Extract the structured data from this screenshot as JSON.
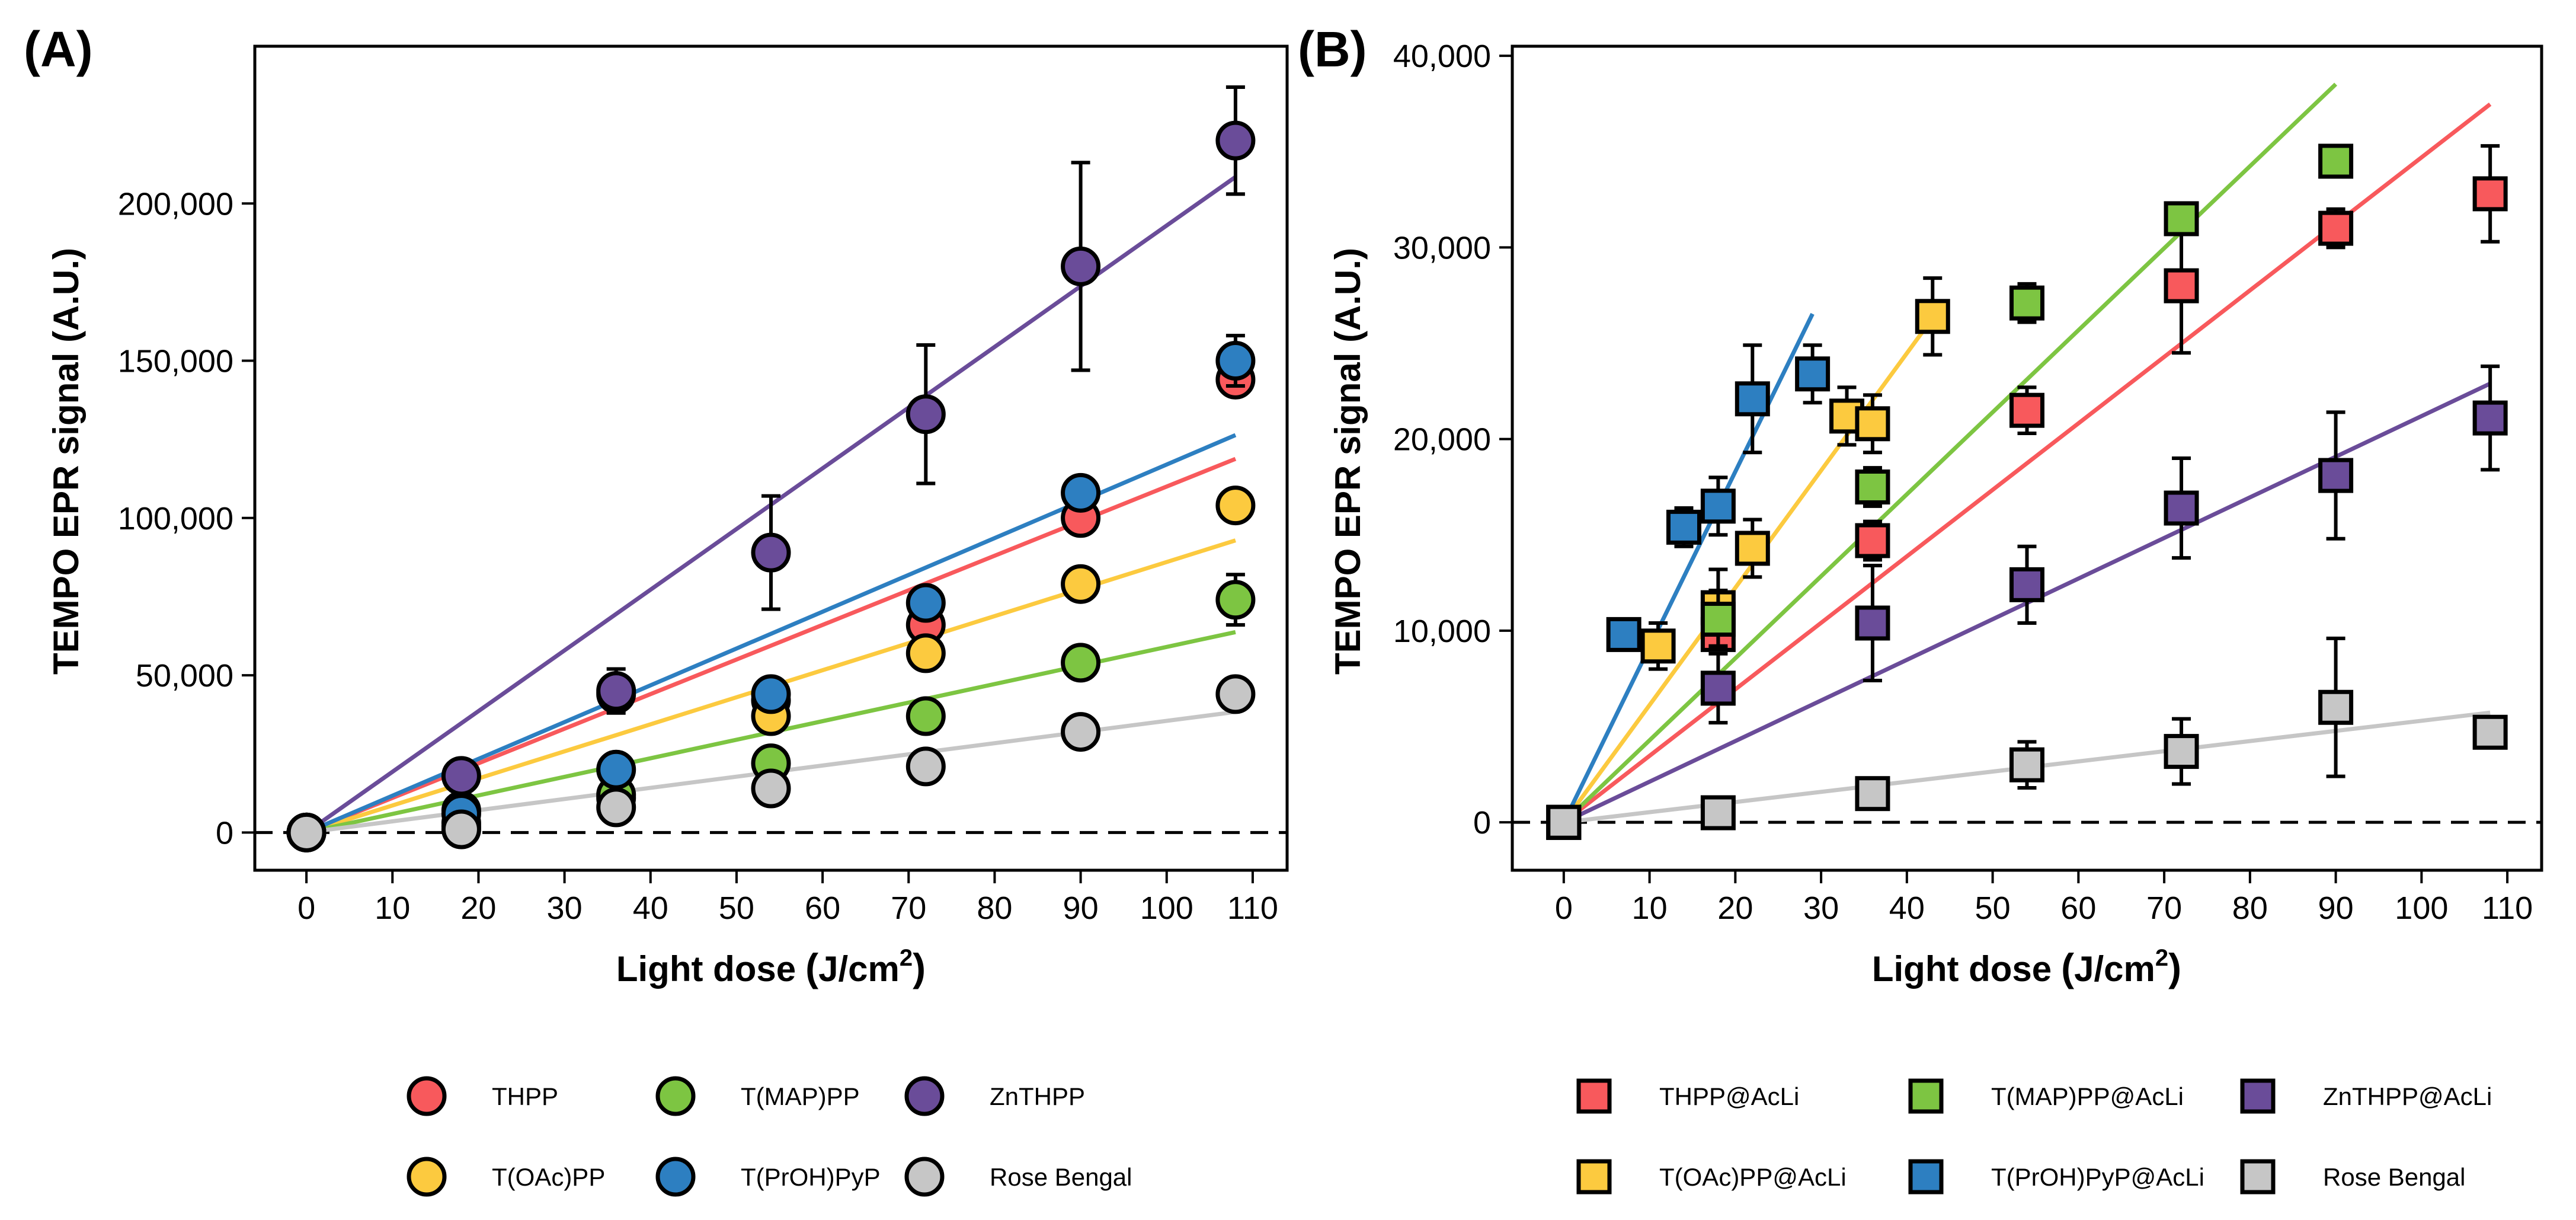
{
  "chart_data": [
    {
      "type": "scatter",
      "panel_label": "(A)",
      "xlabel_main": "Light dose",
      "xlabel_unit": "J/cm",
      "xlabel_sup": "2",
      "ylabel": "TEMPO EPR signal (A.U.)",
      "xlim": [
        -6,
        114
      ],
      "ylim": [
        -12000,
        250000
      ],
      "xticks": [
        0,
        10,
        20,
        30,
        40,
        50,
        60,
        70,
        80,
        90,
        100,
        110
      ],
      "yticks": [
        0,
        50000,
        100000,
        150000,
        200000
      ],
      "ytick_labels": [
        "0",
        "50,000",
        "100,000",
        "150,000",
        "200,000"
      ],
      "marker": "circle",
      "series": [
        {
          "name": "THPP",
          "color": "#F8595C",
          "x": [
            0,
            18,
            36,
            54,
            72,
            90,
            108
          ],
          "y": [
            0,
            3000,
            44000,
            42000,
            66000,
            100000,
            144000
          ],
          "err": [
            0,
            1500,
            4000,
            3000,
            4000,
            4000,
            4000
          ],
          "fit": [
            0,
            1100
          ]
        },
        {
          "name": "T(OAc)PP",
          "color": "#FCCA3F",
          "x": [
            0,
            18,
            36,
            54,
            72,
            90,
            108
          ],
          "y": [
            0,
            2000,
            11000,
            37000,
            57000,
            79000,
            104000
          ],
          "err": [
            0,
            1500,
            2000,
            3000,
            3000,
            3000,
            3000
          ],
          "fit": [
            0,
            860
          ]
        },
        {
          "name": "T(MAP)PP",
          "color": "#7DC542",
          "x": [
            0,
            18,
            36,
            54,
            72,
            90,
            108
          ],
          "y": [
            0,
            7000,
            12000,
            22000,
            37000,
            54000,
            74000
          ],
          "err": [
            0,
            1500,
            2000,
            3000,
            3000,
            4000,
            8000
          ],
          "fit": [
            0,
            590
          ]
        },
        {
          "name": "T(PrOH)PyP",
          "color": "#2D7FC1",
          "x": [
            0,
            18,
            36,
            54,
            72,
            90,
            108
          ],
          "y": [
            0,
            6000,
            20000,
            44000,
            73000,
            108000,
            150000
          ],
          "err": [
            0,
            2000,
            2000,
            3000,
            4000,
            4000,
            8000
          ],
          "fit": [
            0,
            1170
          ]
        },
        {
          "name": "ZnTHPP",
          "color": "#6A4C99",
          "x": [
            0,
            18,
            36,
            54,
            72,
            90,
            108
          ],
          "y": [
            0,
            18000,
            45000,
            89000,
            133000,
            180000,
            220000
          ],
          "err": [
            0,
            3000,
            7000,
            18000,
            22000,
            33000,
            17000
          ],
          "fit": [
            0,
            1930
          ]
        },
        {
          "name": "Rose Bengal",
          "color": "#C6C6C6",
          "x": [
            0,
            18,
            36,
            54,
            72,
            90,
            108
          ],
          "y": [
            0,
            1000,
            8000,
            14000,
            21000,
            32000,
            44000
          ],
          "err": [
            0,
            1000,
            2000,
            2000,
            3000,
            3000,
            3000
          ],
          "fit": [
            0,
            355
          ]
        }
      ]
    },
    {
      "type": "scatter",
      "panel_label": "(B)",
      "xlabel_main": "Light dose",
      "xlabel_unit": "J/cm",
      "xlabel_sup": "2",
      "ylabel": "TEMPO EPR signal (A.U.)",
      "xlim": [
        -6,
        114
      ],
      "ylim": [
        -2500,
        40500
      ],
      "xticks": [
        0,
        10,
        20,
        30,
        40,
        50,
        60,
        70,
        80,
        90,
        100,
        110
      ],
      "yticks": [
        0,
        10000,
        20000,
        30000,
        40000
      ],
      "ytick_labels": [
        "0",
        "10,000",
        "20,000",
        "30,000",
        "40,000"
      ],
      "marker": "square",
      "series": [
        {
          "name": "THPP@AcLi",
          "color": "#F8595C",
          "x": [
            0,
            18,
            36,
            54,
            72,
            90,
            108
          ],
          "y": [
            0,
            9800,
            14700,
            21500,
            28000,
            31000,
            32800
          ],
          "err": [
            0,
            800,
            1000,
            1200,
            3500,
            1000,
            2500
          ],
          "fit": [
            0,
            347
          ],
          "fit_xmax": 108
        },
        {
          "name": "T(OAc)PP@AcLi",
          "color": "#FCCA3F",
          "x": [
            0,
            11,
            18,
            22,
            33,
            36,
            43
          ],
          "y": [
            0,
            9200,
            11200,
            14300,
            21200,
            20800,
            26400
          ],
          "err": [
            0,
            1200,
            2000,
            1500,
            1500,
            1500,
            2000
          ],
          "fit": [
            0,
            612
          ],
          "fit_xmax": 43
        },
        {
          "name": "T(MAP)PP@AcLi",
          "color": "#7DC542",
          "x": [
            0,
            18,
            36,
            54,
            72,
            90
          ],
          "y": [
            0,
            10600,
            17500,
            27100,
            31500,
            34500
          ],
          "err": [
            0,
            1500,
            1000,
            1000,
            800,
            500
          ],
          "fit": [
            0,
            428
          ],
          "fit_xmax": 90
        },
        {
          "name": "T(PrOH)PyP@AcLi",
          "color": "#2D7FC1",
          "x": [
            0,
            7,
            14,
            18,
            22,
            29
          ],
          "y": [
            0,
            9800,
            15400,
            16500,
            22100,
            23400
          ],
          "err": [
            0,
            500,
            1000,
            1500,
            2800,
            1500
          ],
          "fit": [
            0,
            915
          ],
          "fit_xmax": 29
        },
        {
          "name": "ZnTHPP@AcLi",
          "color": "#6A4C99",
          "x": [
            0,
            18,
            36,
            54,
            72,
            90,
            108
          ],
          "y": [
            0,
            7000,
            10400,
            12400,
            16400,
            18100,
            21100
          ],
          "err": [
            0,
            1800,
            3000,
            2000,
            2600,
            3300,
            2700
          ],
          "fit": [
            0,
            212
          ],
          "fit_xmax": 108
        },
        {
          "name": "Rose Bengal",
          "color": "#C6C6C6",
          "x": [
            0,
            18,
            36,
            54,
            72,
            90,
            108
          ],
          "y": [
            0,
            500,
            1500,
            3000,
            3700,
            6000,
            4700
          ],
          "err": [
            0,
            500,
            500,
            1200,
            1700,
            3600,
            300
          ],
          "fit": [
            0,
            53
          ],
          "fit_xmax": 108
        }
      ]
    }
  ]
}
